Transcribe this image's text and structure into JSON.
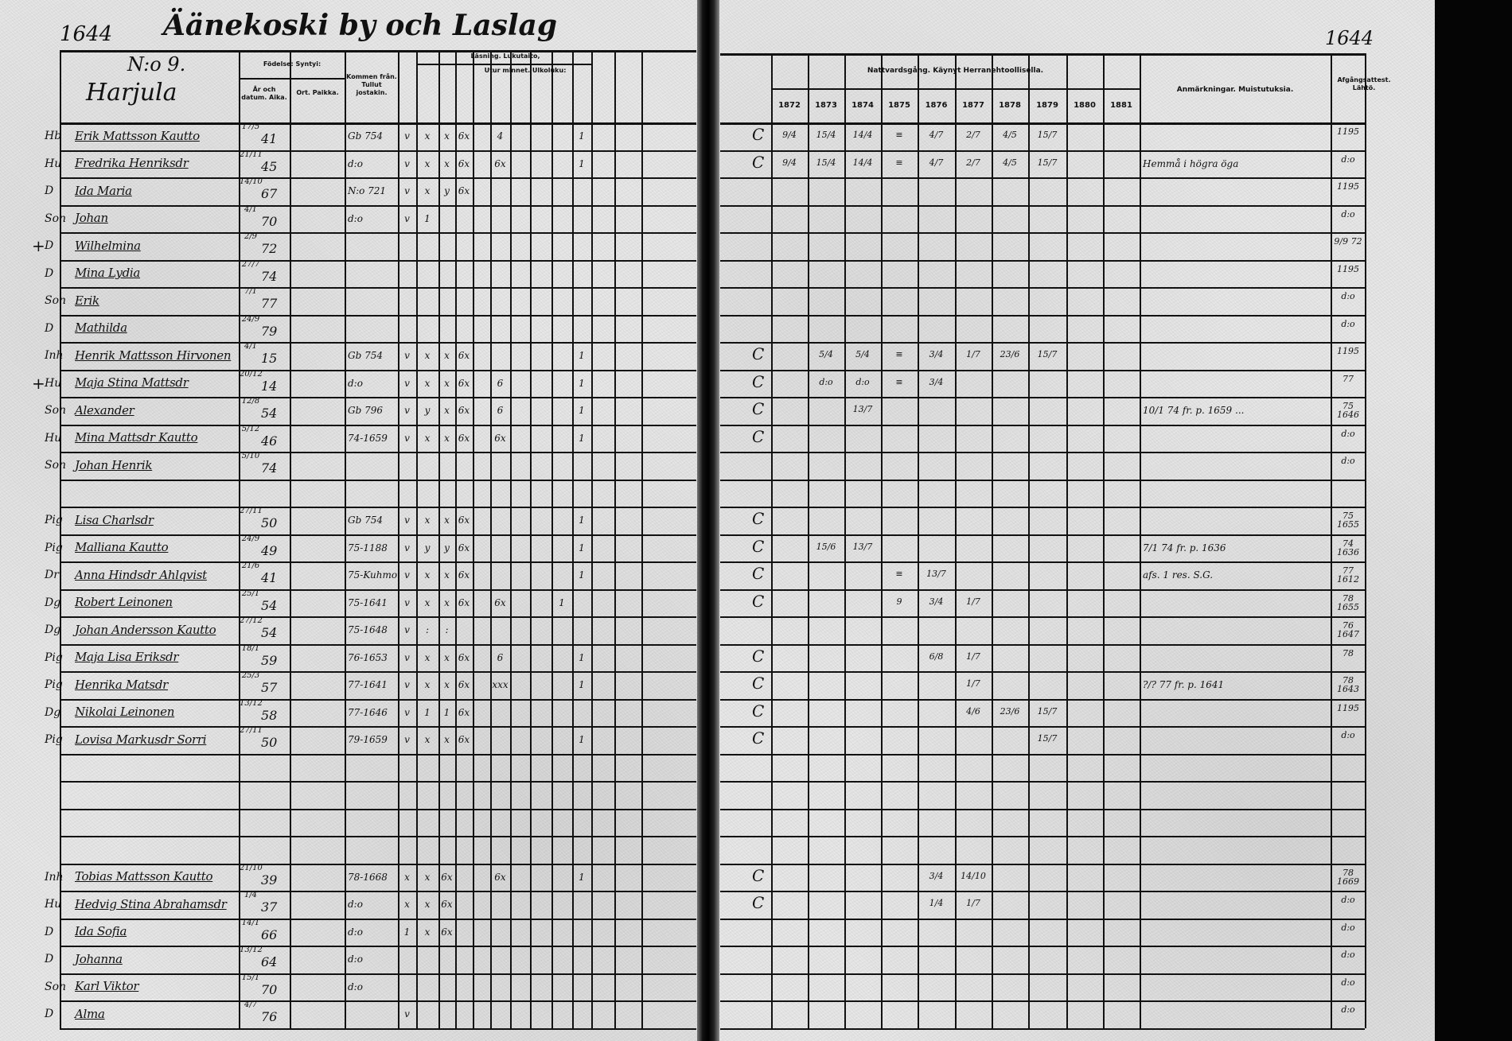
{
  "header": {
    "page_number_left": "1644",
    "page_number_right": "1644",
    "village_title": "Äänekoski by och Laslag",
    "house_number": "N:o 9.",
    "house_name": "Harjula"
  },
  "left_columns": {
    "birth": "Födelse: Syntyi:",
    "birth_date": "År och datum. Aika.",
    "birth_place": "Ort. Paikka.",
    "moved_from": "Kommen från. Tullut jostakin.",
    "reading": "Läsning. Lukutaito,",
    "by_heart": "Utur minnet. Ulkoluku:"
  },
  "right_columns": {
    "communion": "Nattvardsgång. Käynyt Herranehtoollisella.",
    "years": [
      "1872",
      "1873",
      "1874",
      "1875",
      "1876",
      "1877",
      "1878",
      "1879",
      "1880",
      "1881"
    ],
    "remarks": "Anmärkningar. Muistutuksia.",
    "attest": "Afgångsattest. Lähtö."
  },
  "rows": [
    {
      "mark": "",
      "role": "Hb",
      "name": "Erik Mattsson Kautto",
      "day": "17/5",
      "year": "41",
      "from": "Gb 754",
      "reading": [
        "v",
        "x",
        "x",
        "6x",
        "",
        "4",
        "",
        "",
        "",
        "1",
        ""
      ],
      "conf": "C",
      "communion": [
        "9/4",
        "15/4",
        "14/4",
        "≡",
        "4/7",
        "2/7",
        "4/5",
        "15/7",
        "",
        ""
      ],
      "note": "",
      "attest": "1195"
    },
    {
      "mark": "",
      "role": "Hu",
      "name": "Fredrika Henriksdr",
      "day": "21/11",
      "year": "45",
      "from": "d:o",
      "reading": [
        "v",
        "x",
        "x",
        "6x",
        "",
        "6x",
        "",
        "",
        "",
        "1",
        ""
      ],
      "conf": "C",
      "communion": [
        "9/4",
        "15/4",
        "14/4",
        "≡",
        "4/7",
        "2/7",
        "4/5",
        "15/7",
        "",
        ""
      ],
      "note": "Hemmå i högra öga",
      "attest": "d:o"
    },
    {
      "mark": "",
      "role": "D",
      "name": "Ida Maria",
      "day": "14/10",
      "year": "67",
      "from": "N:o 721",
      "reading": [
        "v",
        "x",
        "y",
        "6x",
        "",
        "",
        "",
        "",
        "",
        "",
        ""
      ],
      "conf": "",
      "communion": [
        "",
        "",
        "",
        "",
        "",
        "",
        "",
        "",
        "",
        ""
      ],
      "note": "",
      "attest": "1195"
    },
    {
      "mark": "",
      "role": "Son",
      "name": "Johan",
      "day": "4/1",
      "year": "70",
      "from": "d:o",
      "reading": [
        "v",
        "1",
        "",
        "",
        "",
        "",
        "",
        "",
        "",
        "",
        ""
      ],
      "conf": "",
      "communion": [
        "",
        "",
        "",
        "",
        "",
        "",
        "",
        "",
        "",
        ""
      ],
      "note": "",
      "attest": "d:o"
    },
    {
      "mark": "+",
      "role": "D",
      "name": "Wilhelmina",
      "day": "2/9",
      "year": "72",
      "from": "",
      "reading": [
        "",
        "",
        "",
        "",
        "",
        "",
        "",
        "",
        "",
        "",
        ""
      ],
      "conf": "",
      "communion": [
        "",
        "",
        "",
        "",
        "",
        "",
        "",
        "",
        "",
        ""
      ],
      "note": "",
      "attest": "9/9 72"
    },
    {
      "mark": "",
      "role": "D",
      "name": "Mina Lydia",
      "day": "27/7",
      "year": "74",
      "from": "",
      "reading": [
        "",
        "",
        "",
        "",
        "",
        "",
        "",
        "",
        "",
        "",
        ""
      ],
      "conf": "",
      "communion": [
        "",
        "",
        "",
        "",
        "",
        "",
        "",
        "",
        "",
        ""
      ],
      "note": "",
      "attest": "1195"
    },
    {
      "mark": "",
      "role": "Son",
      "name": "Erik",
      "day": "7/1",
      "year": "77",
      "from": "",
      "reading": [
        "",
        "",
        "",
        "",
        "",
        "",
        "",
        "",
        "",
        "",
        ""
      ],
      "conf": "",
      "communion": [
        "",
        "",
        "",
        "",
        "",
        "",
        "",
        "",
        "",
        ""
      ],
      "note": "",
      "attest": "d:o"
    },
    {
      "mark": "",
      "role": "D",
      "name": "Mathilda",
      "day": "24/9",
      "year": "79",
      "from": "",
      "reading": [
        "",
        "",
        "",
        "",
        "",
        "",
        "",
        "",
        "",
        "",
        ""
      ],
      "conf": "",
      "communion": [
        "",
        "",
        "",
        "",
        "",
        "",
        "",
        "",
        "",
        ""
      ],
      "note": "",
      "attest": "d:o"
    },
    {
      "mark": "",
      "role": "Inh",
      "name": "Henrik Mattsson Hirvonen",
      "day": "4/1",
      "year": "15",
      "from": "Gb 754",
      "reading": [
        "v",
        "x",
        "x",
        "6x",
        "",
        "",
        "",
        "",
        "",
        "1",
        ""
      ],
      "conf": "C",
      "communion": [
        "",
        "5/4",
        "5/4",
        "≡",
        "3/4",
        "1/7",
        "23/6",
        "15/7",
        "",
        ""
      ],
      "note": "",
      "attest": "1195"
    },
    {
      "mark": "+",
      "role": "Hu",
      "name": "Maja Stina Mattsdr",
      "day": "20/12",
      "year": "14",
      "from": "d:o",
      "reading": [
        "v",
        "x",
        "x",
        "6x",
        "",
        "6",
        "",
        "",
        "",
        "1",
        ""
      ],
      "conf": "C",
      "communion": [
        "",
        "d:o",
        "d:o",
        "≡",
        "3/4",
        "",
        "",
        "",
        "",
        ""
      ],
      "note": "",
      "attest": "77"
    },
    {
      "mark": "",
      "role": "Son",
      "name": "Alexander",
      "day": "12/8",
      "year": "54",
      "from": "Gb 796",
      "reading": [
        "v",
        "y",
        "x",
        "6x",
        "",
        "6",
        "",
        "",
        "",
        "1",
        ""
      ],
      "conf": "C",
      "communion": [
        "",
        "",
        "13/7",
        "",
        "",
        "",
        "",
        "",
        "",
        ""
      ],
      "note": "10/1 74 fr. p. 1659 ...",
      "attest": "75 1646"
    },
    {
      "mark": "",
      "role": "Hu",
      "name": "Mina Mattsdr Kautto",
      "day": "5/12",
      "year": "46",
      "from": "74-1659",
      "reading": [
        "v",
        "x",
        "x",
        "6x",
        "",
        "6x",
        "",
        "",
        "",
        "1",
        ""
      ],
      "conf": "C",
      "communion": [
        "",
        "",
        "",
        "",
        "",
        "",
        "",
        "",
        "",
        ""
      ],
      "note": "",
      "attest": "d:o"
    },
    {
      "mark": "",
      "role": "Son",
      "name": "Johan Henrik",
      "day": "5/10",
      "year": "74",
      "from": "",
      "reading": [
        "",
        "",
        "",
        "",
        "",
        "",
        "",
        "",
        "",
        "",
        ""
      ],
      "conf": "",
      "communion": [
        "",
        "",
        "",
        "",
        "",
        "",
        "",
        "",
        "",
        ""
      ],
      "note": "",
      "attest": "d:o"
    },
    {
      "mark": "",
      "role": "",
      "name": "",
      "day": "",
      "year": "",
      "from": "",
      "reading": [
        "",
        "",
        "",
        "",
        "",
        "",
        "",
        "",
        "",
        "",
        ""
      ],
      "conf": "",
      "communion": [
        "",
        "",
        "",
        "",
        "",
        "",
        "",
        "",
        "",
        ""
      ],
      "note": "",
      "attest": ""
    },
    {
      "mark": "",
      "role": "Pig",
      "name": "Lisa Charlsdr",
      "day": "27/11",
      "year": "50",
      "from": "Gb 754",
      "reading": [
        "v",
        "x",
        "x",
        "6x",
        "",
        "",
        "",
        "",
        "",
        "1",
        ""
      ],
      "conf": "C",
      "communion": [
        "",
        "",
        "",
        "",
        "",
        "",
        "",
        "",
        "",
        ""
      ],
      "note": "",
      "attest": "75 1655"
    },
    {
      "mark": "",
      "role": "Pig",
      "name": "Malliana Kautto",
      "day": "24/9",
      "year": "49",
      "from": "75-1188",
      "reading": [
        "v",
        "y",
        "y",
        "6x",
        "",
        "",
        "",
        "",
        "",
        "1",
        ""
      ],
      "conf": "C",
      "communion": [
        "",
        "15/6",
        "13/7",
        "",
        "",
        "",
        "",
        "",
        "",
        ""
      ],
      "note": "7/1 74 fr. p. 1636",
      "attest": "74 1636"
    },
    {
      "mark": "",
      "role": "Dr",
      "name": "Anna Hindsdr Ahlqvist",
      "day": "21/6",
      "year": "41",
      "from": "75-Kuhmo",
      "reading": [
        "v",
        "x",
        "x",
        "6x",
        "",
        "",
        "",
        "",
        "",
        "1",
        ""
      ],
      "conf": "C",
      "communion": [
        "",
        "",
        "",
        "≡",
        "13/7",
        "",
        "",
        "",
        "",
        ""
      ],
      "note": "afs. 1 res. S.G.",
      "attest": "77 1612"
    },
    {
      "mark": "",
      "role": "Dg",
      "name": "Robert Leinonen",
      "day": "25/1",
      "year": "54",
      "from": "75-1641",
      "reading": [
        "v",
        "x",
        "x",
        "6x",
        "",
        "6x",
        "",
        "",
        "1",
        "",
        ""
      ],
      "conf": "C",
      "communion": [
        "",
        "",
        "",
        "9",
        "3/4",
        "1/7",
        "",
        "",
        "",
        ""
      ],
      "note": "",
      "attest": "78 1655"
    },
    {
      "mark": "",
      "role": "Dg",
      "name": "Johan Andersson Kautto",
      "day": "27/12",
      "year": "54",
      "from": "75-1648",
      "reading": [
        "v",
        ":",
        ":",
        "",
        "",
        "",
        "",
        "",
        "",
        "",
        ""
      ],
      "conf": "",
      "communion": [
        "",
        "",
        "",
        "",
        "",
        "",
        "",
        "",
        "",
        ""
      ],
      "note": "",
      "attest": "76 1647"
    },
    {
      "mark": "",
      "role": "Pig",
      "name": "Maja Lisa Eriksdr",
      "day": "18/1",
      "year": "59",
      "from": "76-1653",
      "reading": [
        "v",
        "x",
        "x",
        "6x",
        "",
        "6",
        "",
        "",
        "",
        "1",
        ""
      ],
      "conf": "C",
      "communion": [
        "",
        "",
        "",
        "",
        "6/8",
        "1/7",
        "",
        "",
        "",
        ""
      ],
      "note": "",
      "attest": "78"
    },
    {
      "mark": "",
      "role": "Pig",
      "name": "Henrika Matsdr",
      "day": "25/3",
      "year": "57",
      "from": "77-1641",
      "reading": [
        "v",
        "x",
        "x",
        "6x",
        "",
        "xxx",
        "",
        "",
        "",
        "1",
        ""
      ],
      "conf": "C",
      "communion": [
        "",
        "",
        "",
        "",
        "",
        "1/7",
        "",
        "",
        "",
        ""
      ],
      "note": "?/? 77 fr. p. 1641",
      "attest": "78 1643"
    },
    {
      "mark": "",
      "role": "Dg",
      "name": "Nikolai Leinonen",
      "day": "13/12",
      "year": "58",
      "from": "77-1646",
      "reading": [
        "v",
        "1",
        "1",
        "6x",
        "",
        "",
        "",
        "",
        "",
        "",
        ""
      ],
      "conf": "C",
      "communion": [
        "",
        "",
        "",
        "",
        "",
        "4/6",
        "23/6",
        "15/7",
        "",
        ""
      ],
      "note": "",
      "attest": "1195"
    },
    {
      "mark": "",
      "role": "Pig",
      "name": "Lovisa Markusdr Sorri",
      "day": "27/11",
      "year": "50",
      "from": "79-1659",
      "reading": [
        "v",
        "x",
        "x",
        "6x",
        "",
        "",
        "",
        "",
        "",
        "1",
        ""
      ],
      "conf": "C",
      "communion": [
        "",
        "",
        "",
        "",
        "",
        "",
        "",
        "15/7",
        "",
        ""
      ],
      "note": "",
      "attest": "d:o"
    },
    {
      "mark": "",
      "role": "",
      "name": "",
      "day": "",
      "year": "",
      "from": "",
      "reading": [
        "",
        "",
        "",
        "",
        "",
        "",
        "",
        "",
        "",
        "",
        ""
      ],
      "conf": "",
      "communion": [
        "",
        "",
        "",
        "",
        "",
        "",
        "",
        "",
        "",
        ""
      ],
      "note": "",
      "attest": ""
    },
    {
      "mark": "",
      "role": "",
      "name": "",
      "day": "",
      "year": "",
      "from": "",
      "reading": [
        "",
        "",
        "",
        "",
        "",
        "",
        "",
        "",
        "",
        "",
        ""
      ],
      "conf": "",
      "communion": [
        "",
        "",
        "",
        "",
        "",
        "",
        "",
        "",
        "",
        ""
      ],
      "note": "",
      "attest": ""
    },
    {
      "mark": "",
      "role": "",
      "name": "",
      "day": "",
      "year": "",
      "from": "",
      "reading": [
        "",
        "",
        "",
        "",
        "",
        "",
        "",
        "",
        "",
        "",
        ""
      ],
      "conf": "",
      "communion": [
        "",
        "",
        "",
        "",
        "",
        "",
        "",
        "",
        "",
        ""
      ],
      "note": "",
      "attest": ""
    },
    {
      "mark": "",
      "role": "",
      "name": "",
      "day": "",
      "year": "",
      "from": "",
      "reading": [
        "",
        "",
        "",
        "",
        "",
        "",
        "",
        "",
        "",
        "",
        ""
      ],
      "conf": "",
      "communion": [
        "",
        "",
        "",
        "",
        "",
        "",
        "",
        "",
        "",
        ""
      ],
      "note": "",
      "attest": ""
    },
    {
      "mark": "",
      "role": "Inh",
      "name": "Tobias Mattsson Kautto",
      "day": "21/10",
      "year": "39",
      "from": "78-1668",
      "reading": [
        "x",
        "x",
        "6x",
        "",
        "",
        "6x",
        "",
        "",
        "",
        "1",
        ""
      ],
      "conf": "C",
      "communion": [
        "",
        "",
        "",
        "",
        "3/4",
        "14/10",
        "",
        "",
        "",
        ""
      ],
      "note": "",
      "attest": "78 1669"
    },
    {
      "mark": "",
      "role": "Hu",
      "name": "Hedvig Stina Abrahamsdr",
      "day": "1/4",
      "year": "37",
      "from": "d:o",
      "reading": [
        "x",
        "x",
        "6x",
        "",
        "",
        "",
        "",
        "",
        "",
        "",
        ""
      ],
      "conf": "C",
      "communion": [
        "",
        "",
        "",
        "",
        "1/4",
        "1/7",
        "",
        "",
        "",
        ""
      ],
      "note": "",
      "attest": "d:o"
    },
    {
      "mark": "",
      "role": "D",
      "name": "Ida Sofia",
      "day": "14/1",
      "year": "66",
      "from": "d:o",
      "reading": [
        "1",
        "x",
        "6x",
        "",
        "",
        "",
        "",
        "",
        "",
        "",
        ""
      ],
      "conf": "",
      "communion": [
        "",
        "",
        "",
        "",
        "",
        "",
        "",
        "",
        "",
        ""
      ],
      "note": "",
      "attest": "d:o"
    },
    {
      "mark": "",
      "role": "D",
      "name": "Johanna",
      "day": "13/12",
      "year": "64",
      "from": "d:o",
      "reading": [
        "",
        "",
        "",
        "",
        "",
        "",
        "",
        "",
        "",
        "",
        ""
      ],
      "conf": "",
      "communion": [
        "",
        "",
        "",
        "",
        "",
        "",
        "",
        "",
        "",
        ""
      ],
      "note": "",
      "attest": "d:o"
    },
    {
      "mark": "",
      "role": "Son",
      "name": "Karl Viktor",
      "day": "15/1",
      "year": "70",
      "from": "d:o",
      "reading": [
        "",
        "",
        "",
        "",
        "",
        "",
        "",
        "",
        "",
        "",
        ""
      ],
      "conf": "",
      "communion": [
        "",
        "",
        "",
        "",
        "",
        "",
        "",
        "",
        "",
        ""
      ],
      "note": "",
      "attest": "d:o"
    },
    {
      "mark": "",
      "role": "D",
      "name": "Alma",
      "day": "4/7",
      "year": "76",
      "from": "",
      "reading": [
        "v",
        "",
        "",
        "",
        "",
        "",
        "",
        "",
        "",
        "",
        ""
      ],
      "conf": "",
      "communion": [
        "",
        "",
        "",
        "",
        "",
        "",
        "",
        "",
        "",
        ""
      ],
      "note": "",
      "attest": "d:o"
    }
  ]
}
